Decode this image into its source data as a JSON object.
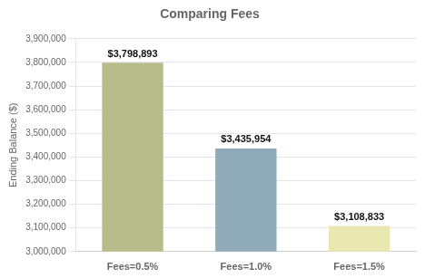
{
  "chart_data": {
    "type": "bar",
    "title": "Comparing Fees",
    "categories": [
      "Fees=0.5%",
      "Fees=1.0%",
      "Fees=1.5%"
    ],
    "values": [
      3798893,
      3435954,
      3108833
    ],
    "value_labels": [
      "$3,798,893",
      "$3,435,954",
      "$3,108,833"
    ],
    "data_labels": true,
    "colors": [
      "#b8bc8a",
      "#8faab8",
      "#e8e8b0"
    ],
    "ylabel": "Ending Balance ($)",
    "ylim": [
      3000000,
      3900000
    ],
    "yticks": [
      {
        "value": 3000000,
        "label": "3,000,000"
      },
      {
        "value": 3100000,
        "label": "3,100,000"
      },
      {
        "value": 3200000,
        "label": "3,200,000"
      },
      {
        "value": 3300000,
        "label": "3,300,000"
      },
      {
        "value": 3400000,
        "label": "3,400,000"
      },
      {
        "value": 3500000,
        "label": "3,500,000"
      },
      {
        "value": 3600000,
        "label": "3,600,000"
      },
      {
        "value": 3700000,
        "label": "3,700,000"
      },
      {
        "value": 3800000,
        "label": "3,800,000"
      },
      {
        "value": 3900000,
        "label": "3,900,000"
      }
    ],
    "grid": true
  }
}
